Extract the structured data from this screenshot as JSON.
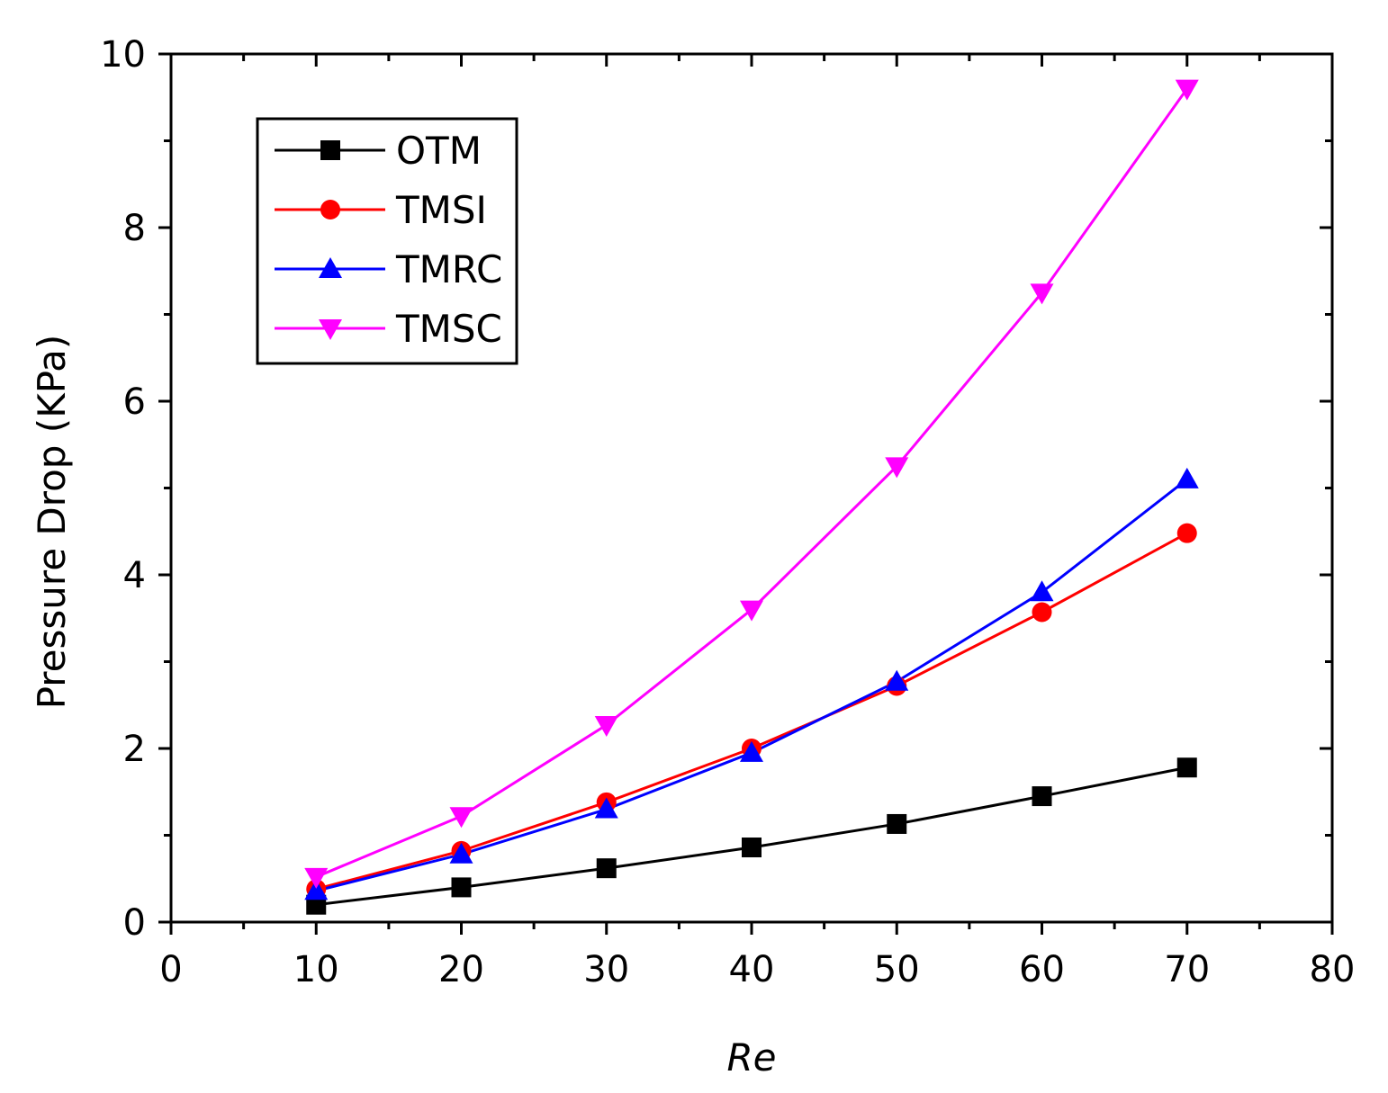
{
  "chart_data": {
    "type": "line",
    "title": "",
    "xlabel": "Re",
    "ylabel": "Pressure Drop (KPa)",
    "xlim": [
      0,
      80
    ],
    "ylim": [
      0,
      10
    ],
    "xticks": [
      0,
      10,
      20,
      30,
      40,
      50,
      60,
      70,
      80
    ],
    "yticks": [
      0,
      2,
      4,
      6,
      8,
      10
    ],
    "x": [
      10,
      20,
      30,
      40,
      50,
      60,
      70
    ],
    "legend_position": "top-left",
    "series": [
      {
        "name": "OTM",
        "color": "#000000",
        "marker": "square",
        "values": [
          0.2,
          0.4,
          0.62,
          0.86,
          1.13,
          1.45,
          1.78
        ]
      },
      {
        "name": "TMSI",
        "color": "#ff0000",
        "marker": "circle",
        "values": [
          0.38,
          0.82,
          1.38,
          2.0,
          2.72,
          3.57,
          4.48
        ]
      },
      {
        "name": "TMRC",
        "color": "#0000ff",
        "marker": "triangle-up",
        "values": [
          0.36,
          0.78,
          1.3,
          1.95,
          2.77,
          3.8,
          5.1
        ]
      },
      {
        "name": "TMSC",
        "color": "#ff00ff",
        "marker": "triangle-down",
        "values": [
          0.52,
          1.22,
          2.27,
          3.6,
          5.25,
          7.25,
          9.6
        ]
      }
    ]
  }
}
